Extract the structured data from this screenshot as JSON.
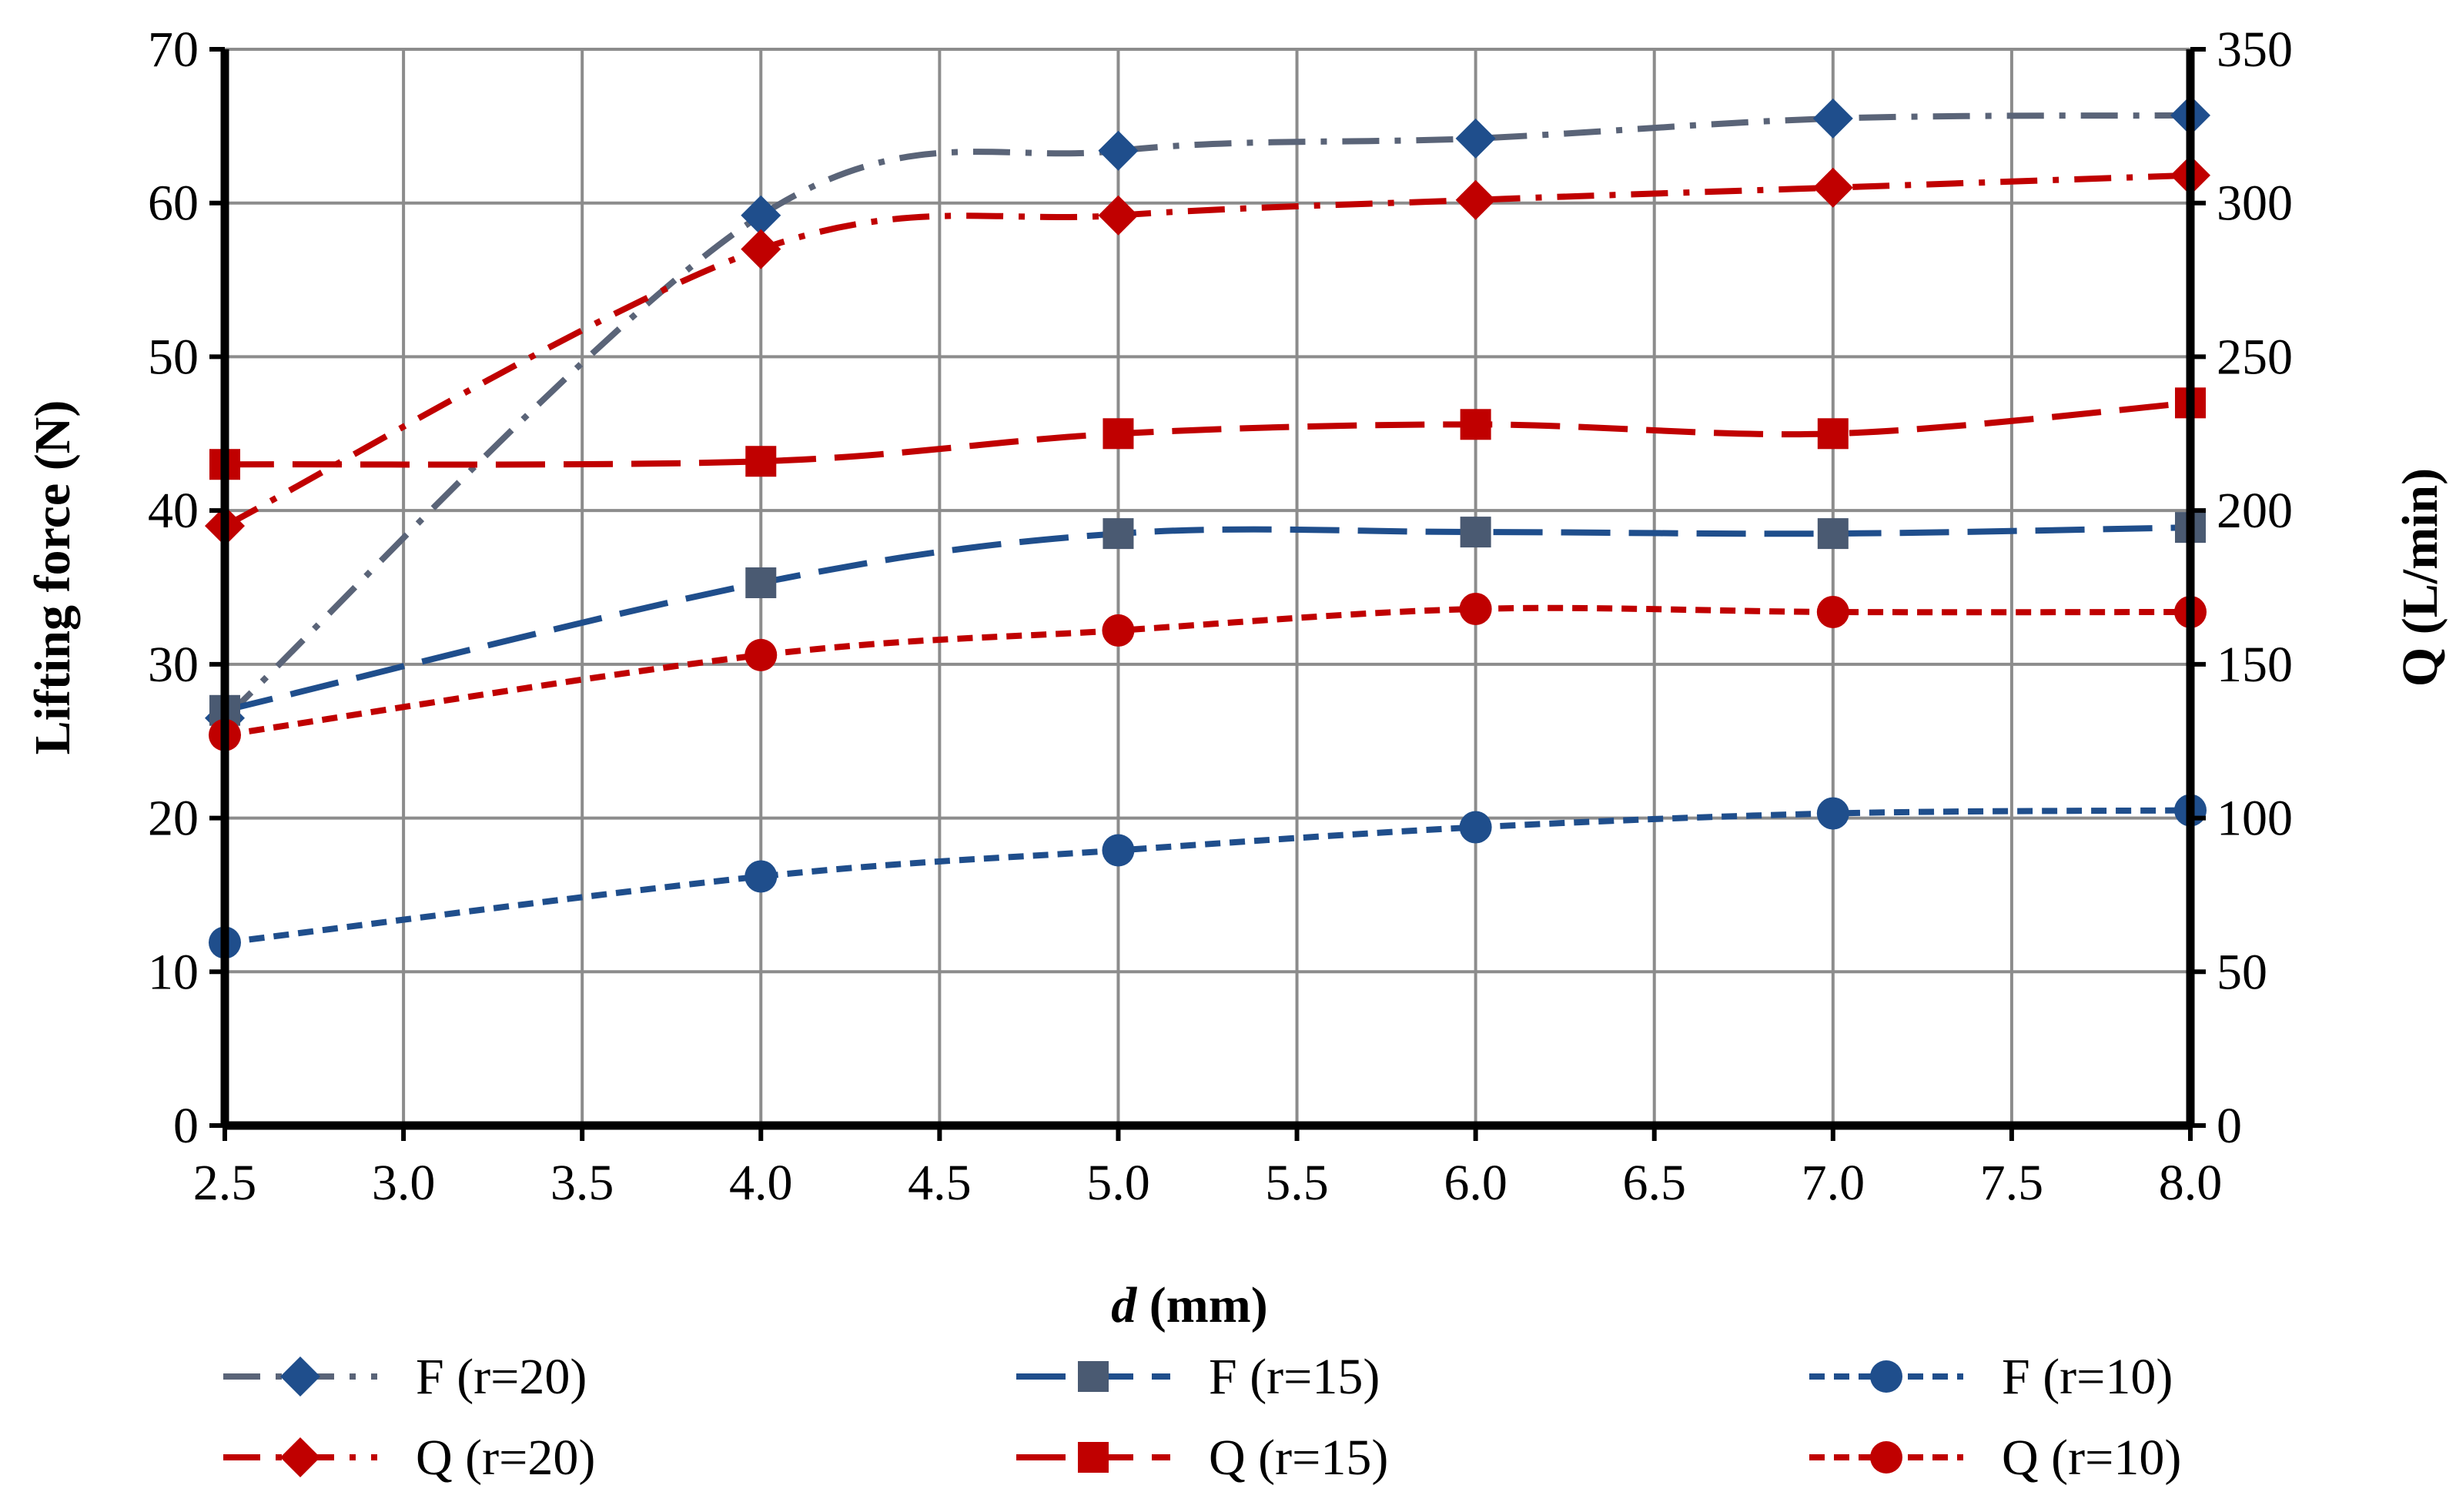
{
  "chart_data": {
    "type": "line",
    "xlabel_italic": "d",
    "xlabel_rest": " (mm)",
    "ylabel_left": "Lifting force (N)",
    "ylabel_right": "Q (L/min)",
    "xlim": [
      2.5,
      8.0
    ],
    "ylim_left": [
      0,
      70
    ],
    "ylim_right": [
      0,
      350
    ],
    "grid": true,
    "legend_position": "bottom",
    "x_ticks": [
      2.5,
      3.0,
      3.5,
      4.0,
      4.5,
      5.0,
      5.5,
      6.0,
      6.5,
      7.0,
      7.5,
      8.0
    ],
    "x_tick_labels": [
      "2.5",
      "3.0",
      "3.5",
      "4.0",
      "4.5",
      "5.0",
      "5.5",
      "6.0",
      "6.5",
      "7.0",
      "7.5",
      "8.0"
    ],
    "y_left_ticks": [
      0,
      10,
      20,
      30,
      40,
      50,
      60,
      70
    ],
    "y_left_tick_labels": [
      "0",
      "10",
      "20",
      "30",
      "40",
      "50",
      "60",
      "70"
    ],
    "y_right_ticks": [
      0,
      50,
      100,
      150,
      200,
      250,
      300,
      350
    ],
    "y_right_tick_labels": [
      "0",
      "50",
      "100",
      "150",
      "200",
      "250",
      "300",
      "350"
    ],
    "x": [
      2.5,
      4.0,
      5.0,
      6.0,
      7.0,
      8.0
    ],
    "series": [
      {
        "name": "F (r=20)",
        "axis": "left",
        "values": [
          26.5,
          59.2,
          63.4,
          64.2,
          65.5,
          65.7
        ],
        "color": "#5a6478",
        "marker_color": "#1f4e8c",
        "marker": "diamond",
        "dash": "dashdot"
      },
      {
        "name": "F (r=15)",
        "axis": "left",
        "values": [
          27.0,
          35.3,
          38.5,
          38.6,
          38.5,
          38.9
        ],
        "color": "#1f4e8c",
        "marker_color": "#4a5a72",
        "marker": "square",
        "dash": "longdash"
      },
      {
        "name": "F (r=10)",
        "axis": "left",
        "values": [
          11.9,
          16.2,
          17.9,
          19.4,
          20.3,
          20.5
        ],
        "color": "#1f4e8c",
        "marker_color": "#1f4e8c",
        "marker": "circle",
        "dash": "shortdash"
      },
      {
        "name": "Q (r=20)",
        "axis": "right",
        "values": [
          195,
          285,
          296,
          301,
          305,
          309
        ],
        "color": "#c00000",
        "marker_color": "#c00000",
        "marker": "diamond",
        "dash": "dashdot"
      },
      {
        "name": "Q (r=15)",
        "axis": "right",
        "values": [
          215,
          216,
          225,
          228,
          225,
          235
        ],
        "color": "#c00000",
        "marker_color": "#c00000",
        "marker": "square",
        "dash": "longdash"
      },
      {
        "name": "Q (r=10)",
        "axis": "right",
        "values": [
          127,
          153,
          161,
          168,
          167,
          167
        ],
        "color": "#c00000",
        "marker_color": "#c00000",
        "marker": "circle",
        "dash": "shortdash"
      }
    ]
  }
}
